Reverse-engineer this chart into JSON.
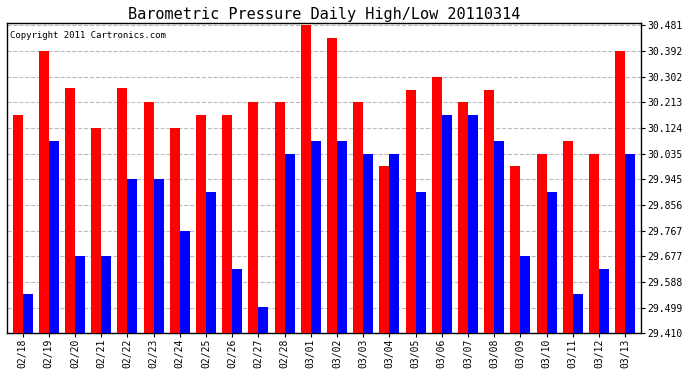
{
  "title": "Barometric Pressure Daily High/Low 20110314",
  "copyright": "Copyright 2011 Cartronics.com",
  "dates": [
    "02/18",
    "02/19",
    "02/20",
    "02/21",
    "02/22",
    "02/23",
    "02/24",
    "02/25",
    "02/26",
    "02/27",
    "02/28",
    "03/01",
    "03/02",
    "03/03",
    "03/04",
    "03/05",
    "03/06",
    "03/07",
    "03/08",
    "03/09",
    "03/10",
    "03/11",
    "03/12",
    "03/13"
  ],
  "highs": [
    30.168,
    30.392,
    30.262,
    30.124,
    30.262,
    30.213,
    30.124,
    30.168,
    30.168,
    30.213,
    30.213,
    30.481,
    30.437,
    30.213,
    29.99,
    30.257,
    30.302,
    30.213,
    30.257,
    29.99,
    30.035,
    30.079,
    30.035,
    30.392
  ],
  "lows": [
    29.545,
    30.079,
    29.677,
    29.677,
    29.945,
    29.945,
    29.767,
    29.9,
    29.634,
    29.5,
    30.035,
    30.079,
    30.079,
    30.035,
    30.035,
    29.9,
    30.168,
    30.168,
    30.079,
    29.677,
    29.9,
    29.545,
    29.634,
    30.035
  ],
  "high_color": "#ff0000",
  "low_color": "#0000ff",
  "bg_color": "#ffffff",
  "grid_color": "#bbbbbb",
  "ymin": 29.41,
  "ymax": 30.481,
  "yticks": [
    29.41,
    29.499,
    29.588,
    29.677,
    29.767,
    29.856,
    29.945,
    30.035,
    30.124,
    30.213,
    30.302,
    30.392,
    30.481
  ],
  "bar_width": 0.38,
  "title_fontsize": 11,
  "tick_fontsize": 7,
  "copyright_fontsize": 6.5
}
